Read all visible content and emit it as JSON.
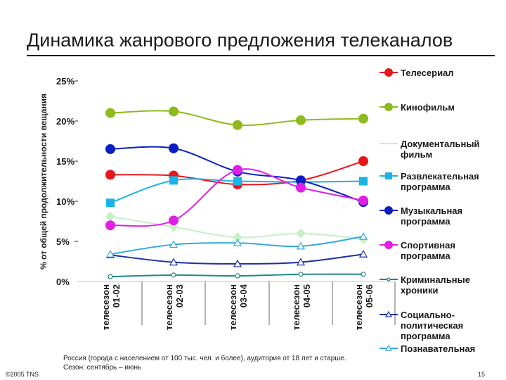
{
  "slide": {
    "title": "Динамика жанрового предложения телеканалов",
    "footnote_lines": [
      "Россия (города с населением от 100 тыс. чел. и более), аудитория от 18 лет и старше.",
      "Сезон: сентябрь – июнь"
    ],
    "copyright": "©2005 TNS",
    "page_number": "15"
  },
  "chart_data": {
    "type": "line",
    "ylabel": "% от общей продолжительности вещания",
    "y_tick_labels": [
      "0%",
      "5%",
      "10%",
      "15%",
      "20%",
      "25%"
    ],
    "ylim": [
      0,
      25
    ],
    "categories": [
      "телесезон 01-02",
      "телесезон 02-03",
      "телесезон 03-04",
      "телесезон 04-05",
      "телесезон 05-06"
    ],
    "category_lines": [
      [
        "телесезон",
        "01-02"
      ],
      [
        "телесезон",
        "02-03"
      ],
      [
        "телесезон",
        "03-04"
      ],
      [
        "телесезон",
        "04-05"
      ],
      [
        "телесезон",
        "05-06"
      ]
    ],
    "legend_position": "right",
    "grid": false,
    "series": [
      {
        "name": "Телесериал",
        "name_lines": [
          "Телесериал"
        ],
        "color": "#e8151b",
        "marker": "circle",
        "values": [
          13.3,
          13.2,
          12.1,
          12.6,
          15.0
        ]
      },
      {
        "name": "Кинофильм",
        "name_lines": [
          "Кинофильм"
        ],
        "color": "#8dbb1c",
        "marker": "circle",
        "values": [
          21.0,
          21.2,
          19.5,
          20.1,
          20.3
        ]
      },
      {
        "name": "Документальный фильм",
        "name_lines": [
          "Документальный",
          "фильм"
        ],
        "color": "#c6f0c6",
        "marker": "diamond",
        "values": [
          8.1,
          6.8,
          5.5,
          6.0,
          5.3
        ]
      },
      {
        "name": "Развлекательная программа",
        "name_lines": [
          "Развлекательная",
          "программа"
        ],
        "color": "#19b3e6",
        "marker": "square",
        "values": [
          9.8,
          12.6,
          12.5,
          12.4,
          12.5
        ]
      },
      {
        "name": "Музыкальная программа",
        "name_lines": [
          "Музыкальная",
          "программа"
        ],
        "color": "#0a1fc2",
        "marker": "circle",
        "values": [
          16.5,
          16.6,
          13.7,
          12.6,
          9.9
        ]
      },
      {
        "name": "Спортивная программа",
        "name_lines": [
          "Спортивная",
          "программа"
        ],
        "color": "#e21ee6",
        "marker": "circle",
        "values": [
          7.0,
          7.6,
          13.9,
          11.7,
          10.1
        ]
      },
      {
        "name": "Криминальные хроники",
        "name_lines": [
          "Криминальные",
          "хроники"
        ],
        "color": "#1f8b82",
        "marker": "open-circle",
        "values": [
          0.6,
          0.8,
          0.7,
          0.9,
          0.9
        ]
      },
      {
        "name": "Социально-политическая программа",
        "name_lines": [
          "Социально-",
          "политическая",
          "программа"
        ],
        "color": "#1a2fa6",
        "marker": "open-triangle",
        "values": [
          3.3,
          2.4,
          2.2,
          2.4,
          3.4
        ]
      },
      {
        "name": "Познавательная",
        "name_lines": [
          "Познавательная"
        ],
        "color": "#33aadd",
        "marker": "open-triangle",
        "values": [
          3.4,
          4.6,
          4.8,
          4.4,
          5.6
        ]
      }
    ]
  }
}
